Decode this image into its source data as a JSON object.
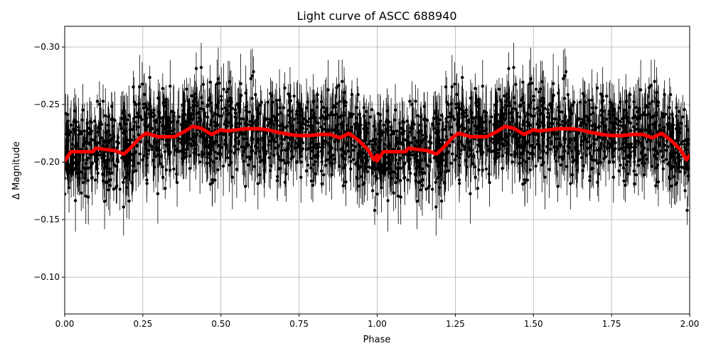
{
  "chart_data": {
    "type": "scatter",
    "title": "Light curve of ASCC 688940",
    "xlabel": "Phase",
    "ylabel": "Δ Magnitude",
    "xlim": [
      0.0,
      2.0
    ],
    "ylim": [
      -0.068,
      -0.318
    ],
    "y_inverted": true,
    "grid": true,
    "x_ticks": [
      0.0,
      0.25,
      0.5,
      0.75,
      1.0,
      1.25,
      1.5,
      1.75,
      2.0
    ],
    "x_tick_labels": [
      "0.00",
      "0.25",
      "0.50",
      "0.75",
      "1.00",
      "1.25",
      "1.50",
      "1.75",
      "2.00"
    ],
    "y_ticks": [
      -0.3,
      -0.25,
      -0.2,
      -0.15,
      -0.1
    ],
    "y_tick_labels": [
      "−0.30",
      "−0.25",
      "−0.20",
      "−0.15",
      "−0.10"
    ],
    "series": [
      {
        "kind": "errorbar-points",
        "color": "#000000",
        "description_of_distribution": "dense photometric measurements centered near -0.22 with scatter roughly ±0.05 and error bars up to ±0.03, repeated over two phase cycles",
        "center_y": -0.22,
        "scatter_y": 0.048
      },
      {
        "kind": "binned-curve",
        "color": "#ff0000",
        "x": [
          0.0,
          0.02,
          0.05,
          0.09,
          0.1,
          0.13,
          0.16,
          0.19,
          0.21,
          0.24,
          0.26,
          0.3,
          0.35,
          0.38,
          0.41,
          0.44,
          0.47,
          0.5,
          0.52,
          0.55,
          0.58,
          0.62,
          0.65,
          0.68,
          0.72,
          0.75,
          0.78,
          0.82,
          0.85,
          0.88,
          0.91,
          0.94,
          0.97,
          0.99,
          1.0
        ],
        "y": [
          -0.201,
          -0.209,
          -0.209,
          -0.209,
          -0.212,
          -0.211,
          -0.21,
          -0.207,
          -0.212,
          -0.221,
          -0.225,
          -0.222,
          -0.222,
          -0.226,
          -0.231,
          -0.229,
          -0.224,
          -0.228,
          -0.227,
          -0.228,
          -0.229,
          -0.229,
          -0.228,
          -0.226,
          -0.224,
          -0.223,
          -0.223,
          -0.224,
          -0.224,
          -0.221,
          -0.225,
          -0.219,
          -0.211,
          -0.202,
          -0.206
        ]
      }
    ]
  }
}
